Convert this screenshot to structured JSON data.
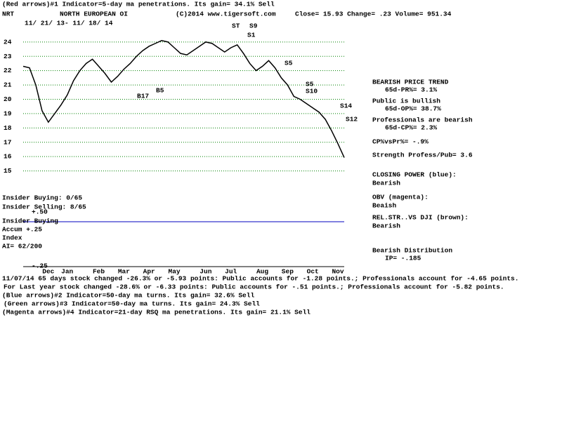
{
  "chart_data": {
    "type": "line",
    "title": "(Red arrows)#1 Indicator=5-day ma penetrations. Its gain= 34.1% Sell",
    "categories": [
      null,
      null,
      null,
      null,
      "Dec",
      null,
      null,
      "Jan",
      null,
      null,
      null,
      null,
      "Feb",
      null,
      null,
      null,
      "Mar",
      null,
      null,
      null,
      "Apr",
      null,
      null,
      null,
      "May",
      null,
      null,
      null,
      null,
      "Jun",
      null,
      null,
      null,
      "Jul",
      null,
      null,
      null,
      null,
      "Aug",
      null,
      null,
      null,
      "Sep",
      null,
      null,
      null,
      "Oct",
      null,
      null,
      null,
      "Nov",
      null
    ],
    "values": [
      22.3,
      22.2,
      21.0,
      19.2,
      18.4,
      19.0,
      19.6,
      20.3,
      21.3,
      22.0,
      22.5,
      22.8,
      22.3,
      21.8,
      21.2,
      21.6,
      22.1,
      22.5,
      23.0,
      23.4,
      23.7,
      23.9,
      24.1,
      24.0,
      23.6,
      23.2,
      23.1,
      23.4,
      23.7,
      24.0,
      23.9,
      23.6,
      23.3,
      23.6,
      23.8,
      23.2,
      22.5,
      22.0,
      22.3,
      22.7,
      22.2,
      21.5,
      21.0,
      20.2,
      20.0,
      19.7,
      19.4,
      19.1,
      18.6,
      17.8,
      16.9,
      15.93
    ],
    "color": "#000000",
    "ylim": [
      14,
      26
    ],
    "yticks": [
      15,
      16,
      17,
      18,
      19,
      20,
      21,
      22,
      23,
      24
    ],
    "grid": true,
    "annotations": [
      "(Red arrows)#1 Indicator=5-day ma penetrations. Its gain= 34.1% Sell",
      "NRT",
      "NORTH EUROPEAN OI",
      "(C)2014 www.tigersoft.com",
      "Close=  15.93  Change= .23 Volume= 951.34",
      "11/ 21/ 13- 11/ 18/ 14",
      "BEARISH PRICE TREND",
      "65d-PR%= 3.1%",
      "Public is bullish",
      "65d-OP%= 38.7%",
      "Professionals are bearish",
      "65d-CP%= 2.3%",
      "CP%vsPr%= -.9%",
      "Strength Profess/Pub= 3.6",
      "CLOSING POWER (blue):",
      "Bearish",
      "OBV (magenta):",
      "Beaish",
      "REL.STR..VS DJI (brown):",
      "Bearish",
      "Bearish Distribution",
      "IP= -.185",
      "Insider Buying: 0/65",
      "Insider Selling: 8/65",
      "+.50",
      "Insider Buying",
      "Accum  +.25",
      "Index",
      "AI= 62/200",
      "-.25",
      "S1",
      "S5",
      "S5",
      "S10",
      "S14",
      "S12",
      "B17",
      "B5",
      "ST",
      "S9",
      "11/07/14 65 days stock changed -26.3% or -5.93 points:  Public accounts for -1.28 points.;  Professionals account for -4.65 points.",
      "For Last year stock changed -28.6% or -6.33 points:  Public accounts for -.51 points.;  Professionals account for -5.82 points.",
      "(Blue arrows)#2 Indicator=50-day ma turns. Its gain= 32.6% Sell",
      "(Green arrows)#3 Indicator=50-day ma turns. Its gain= 24.3% Sell",
      "(Magenta arrows)#4 Indicator=21-day RSQ ma penetrations. Its gain= 21.1% Sell"
    ]
  }
}
